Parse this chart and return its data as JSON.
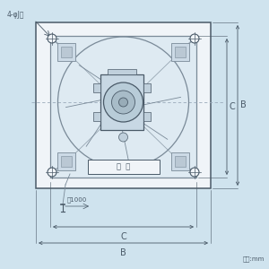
{
  "bg_color": "#cfe3ee",
  "line_color": "#7a8a98",
  "dark_line": "#4a5a68",
  "title_annot": "4-φJ穴",
  "label_meiban": "銘  板",
  "label_yaku": "約1000",
  "label_C": "C",
  "label_B": "B",
  "label_unit": "単位:mm",
  "white_bg": "#f0f4f8"
}
